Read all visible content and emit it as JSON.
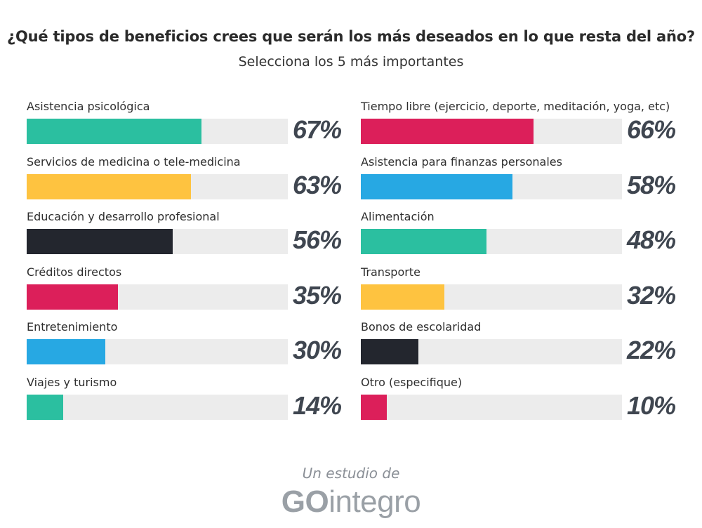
{
  "chart_data": {
    "type": "bar",
    "title": "¿Qué tipos de beneficios crees que serán los más deseados en lo que resta del año?",
    "subtitle": "Selecciona los 5 más importantes",
    "xlim": [
      0,
      100
    ],
    "value_labels": [
      "67%",
      "63%",
      "56%",
      "35%",
      "30%",
      "14%",
      "66%",
      "58%",
      "48%",
      "32%",
      "22%",
      "10%"
    ],
    "columns": [
      {
        "items": [
          {
            "category": "Asistencia psicológica",
            "value": 67,
            "label": "67%",
            "color": "#2bbfa0"
          },
          {
            "category": "Servicios de medicina o tele-medicina",
            "value": 63,
            "label": "63%",
            "color": "#fec340"
          },
          {
            "category": "Educación y desarrollo profesional",
            "value": 56,
            "label": "56%",
            "color": "#23262e"
          },
          {
            "category": "Créditos directos",
            "value": 35,
            "label": "35%",
            "color": "#dc1f5a"
          },
          {
            "category": "Entretenimiento",
            "value": 30,
            "label": "30%",
            "color": "#27a8e3"
          },
          {
            "category": "Viajes y turismo",
            "value": 14,
            "label": "14%",
            "color": "#2bbfa0"
          }
        ]
      },
      {
        "items": [
          {
            "category": "Tiempo libre (ejercicio, deporte, meditación, yoga, etc)",
            "value": 66,
            "label": "66%",
            "color": "#dc1f5a"
          },
          {
            "category": "Asistencia para finanzas personales",
            "value": 58,
            "label": "58%",
            "color": "#27a8e3"
          },
          {
            "category": "Alimentación",
            "value": 48,
            "label": "48%",
            "color": "#2bbfa0"
          },
          {
            "category": "Transporte",
            "value": 32,
            "label": "32%",
            "color": "#fec340"
          },
          {
            "category": "Bonos de escolaridad",
            "value": 22,
            "label": "22%",
            "color": "#23262e"
          },
          {
            "category": "Otro (especifique)",
            "value": 10,
            "label": "10%",
            "color": "#dc1f5a"
          }
        ]
      }
    ]
  },
  "footer": {
    "line": "Un estudio de",
    "brand_go": "GO",
    "brand_rest": "integro"
  }
}
